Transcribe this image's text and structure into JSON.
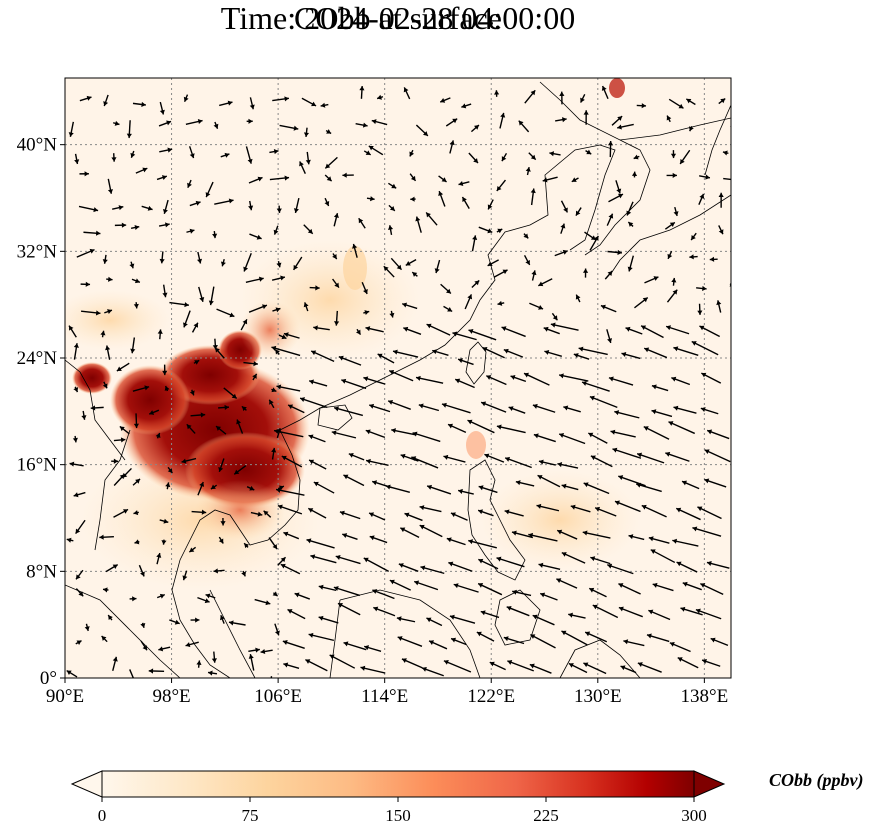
{
  "title_line1": "CObb at surface",
  "title_line2": "Time: 2024-02-28 04:00:00",
  "map": {
    "lon_range": [
      90,
      140
    ],
    "lat_range": [
      0,
      45
    ],
    "lon_ticks": [
      "90°E",
      "98°E",
      "106°E",
      "114°E",
      "122°E",
      "130°E",
      "138°E"
    ],
    "lat_ticks": [
      "0°",
      "8°N",
      "16°N",
      "24°N",
      "32°N",
      "40°N"
    ],
    "gridlines": "dotted"
  },
  "colorbar": {
    "label": "CObb (ppbv)",
    "ticks": [
      "0",
      "75",
      "150",
      "225",
      "300"
    ],
    "range": [
      0,
      300
    ],
    "extend": "both",
    "colormap": [
      "#fff7ec",
      "#fee8c8",
      "#fdd49e",
      "#fdbb84",
      "#fc8d59",
      "#ef6548",
      "#d7301f",
      "#b30000",
      "#7f0000"
    ]
  },
  "colors": {
    "ocean_background": "#fff4e8",
    "coastline": "#000000",
    "plume_dark": "#7f0000",
    "plume_mid": "#c0281a",
    "arrow": "#000000"
  }
}
